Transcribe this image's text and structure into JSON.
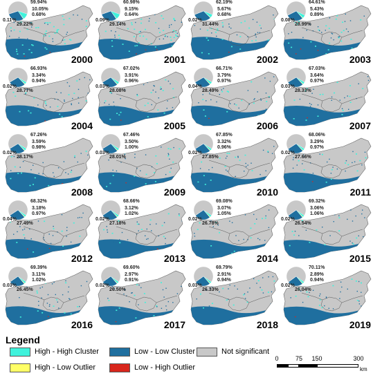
{
  "colors": {
    "high_high": "#3FF2DC",
    "low_low": "#1F6F9F",
    "not_sig": "#C8C8C8",
    "high_low": "#FFFF66",
    "low_high": "#D8261C"
  },
  "panels": [
    {
      "year": "2000",
      "pct_not_sig": "59.94%",
      "pct_hh": "10.05%",
      "pct_hl": "0.68%",
      "pct_lh": "0.11%",
      "pct_ll": "29.22%",
      "not_sig": 59.94,
      "hh": 10.05,
      "hl": 0.68,
      "lh": 0.11,
      "ll": 29.22
    },
    {
      "year": "2001",
      "pct_not_sig": "60.98%",
      "pct_hh": "9.15%",
      "pct_hl": "0.64%",
      "pct_lh": "0.09%",
      "pct_ll": "29.14%",
      "not_sig": 60.98,
      "hh": 9.15,
      "hl": 0.64,
      "lh": 0.09,
      "ll": 29.14
    },
    {
      "year": "2002",
      "pct_not_sig": "62.19%",
      "pct_hh": "5.67%",
      "pct_hl": "0.68%",
      "pct_lh": "0.02%",
      "pct_ll": "31.44%",
      "not_sig": 62.19,
      "hh": 5.67,
      "hl": 0.68,
      "lh": 0.02,
      "ll": 31.44
    },
    {
      "year": "2003",
      "pct_not_sig": "64.61%",
      "pct_hh": "5.43%",
      "pct_hl": "0.89%",
      "pct_lh": "0.08%",
      "pct_ll": "28.99%",
      "not_sig": 64.61,
      "hh": 5.43,
      "hl": 0.89,
      "lh": 0.08,
      "ll": 28.99
    },
    {
      "year": "2004",
      "pct_not_sig": "66.93%",
      "pct_hh": "3.34%",
      "pct_hl": "0.94%",
      "pct_lh": "0.02%",
      "pct_ll": "28.77%",
      "not_sig": 66.93,
      "hh": 3.34,
      "hl": 0.94,
      "lh": 0.02,
      "ll": 28.77
    },
    {
      "year": "2005",
      "pct_not_sig": "67.02%",
      "pct_hh": "3.91%",
      "pct_hl": "0.96%",
      "pct_lh": "0.03%",
      "pct_ll": "28.08%",
      "not_sig": 67.02,
      "hh": 3.91,
      "hl": 0.96,
      "lh": 0.03,
      "ll": 28.08
    },
    {
      "year": "2006",
      "pct_not_sig": "66.71%",
      "pct_hh": "3.79%",
      "pct_hl": "0.97%",
      "pct_lh": "0.04%",
      "pct_ll": "28.49%",
      "not_sig": 66.71,
      "hh": 3.79,
      "hl": 0.97,
      "lh": 0.04,
      "ll": 28.49
    },
    {
      "year": "2007",
      "pct_not_sig": "67.03%",
      "pct_hh": "3.64%",
      "pct_hl": "0.97%",
      "pct_lh": "0.03%",
      "pct_ll": "28.33%",
      "not_sig": 67.03,
      "hh": 3.64,
      "hl": 0.97,
      "lh": 0.03,
      "ll": 28.33
    },
    {
      "year": "2008",
      "pct_not_sig": "67.26%",
      "pct_hh": "3.59%",
      "pct_hl": "0.98%",
      "pct_lh": "0.02%",
      "pct_ll": "28.17%",
      "not_sig": 67.26,
      "hh": 3.59,
      "hl": 0.98,
      "lh": 0.02,
      "ll": 28.17
    },
    {
      "year": "2009",
      "pct_not_sig": "67.46%",
      "pct_hh": "3.50%",
      "pct_hl": "1.00%",
      "pct_lh": "0.03%",
      "pct_ll": "28.01%",
      "not_sig": 67.46,
      "hh": 3.5,
      "hl": 1.0,
      "lh": 0.03,
      "ll": 28.01
    },
    {
      "year": "2010",
      "pct_not_sig": "67.85%",
      "pct_hh": "3.32%",
      "pct_hl": "0.96%",
      "pct_lh": "0.02%",
      "pct_ll": "27.85%",
      "not_sig": 67.85,
      "hh": 3.32,
      "hl": 0.96,
      "lh": 0.02,
      "ll": 27.85
    },
    {
      "year": "2011",
      "pct_not_sig": "68.06%",
      "pct_hh": "3.29%",
      "pct_hl": "0.97%",
      "pct_lh": "0.02%",
      "pct_ll": "27.66%",
      "not_sig": 68.06,
      "hh": 3.29,
      "hl": 0.97,
      "lh": 0.02,
      "ll": 27.66
    },
    {
      "year": "2012",
      "pct_not_sig": "68.32%",
      "pct_hh": "3.18%",
      "pct_hl": "0.97%",
      "pct_lh": "0.04%",
      "pct_ll": "27.49%",
      "not_sig": 68.32,
      "hh": 3.18,
      "hl": 0.97,
      "lh": 0.04,
      "ll": 27.49
    },
    {
      "year": "2013",
      "pct_not_sig": "68.66%",
      "pct_hh": "3.12%",
      "pct_hl": "1.02%",
      "pct_lh": "0.02%",
      "pct_ll": "27.18%",
      "not_sig": 68.66,
      "hh": 3.12,
      "hl": 1.02,
      "lh": 0.02,
      "ll": 27.18
    },
    {
      "year": "2014",
      "pct_not_sig": "69.08%",
      "pct_hh": "3.07%",
      "pct_hl": "1.05%",
      "pct_lh": "0.02%",
      "pct_ll": "26.78%",
      "not_sig": 69.08,
      "hh": 3.07,
      "hl": 1.05,
      "lh": 0.02,
      "ll": 26.78
    },
    {
      "year": "2015",
      "pct_not_sig": "69.32%",
      "pct_hh": "3.06%",
      "pct_hl": "1.06%",
      "pct_lh": "0.02%",
      "pct_ll": "26.54%",
      "not_sig": 69.32,
      "hh": 3.06,
      "hl": 1.06,
      "lh": 0.02,
      "ll": 26.54
    },
    {
      "year": "2016",
      "pct_not_sig": "69.39%",
      "pct_hh": "3.11%",
      "pct_hl": "1.02%",
      "pct_lh": "0.03%",
      "pct_ll": "26.45%",
      "not_sig": 69.39,
      "hh": 3.11,
      "hl": 1.02,
      "lh": 0.03,
      "ll": 26.45
    },
    {
      "year": "2017",
      "pct_not_sig": "69.60%",
      "pct_hh": "2.97%",
      "pct_hl": "0.91%",
      "pct_lh": "0.02%",
      "pct_ll": "26.50%",
      "not_sig": 69.6,
      "hh": 2.97,
      "hl": 0.91,
      "lh": 0.02,
      "ll": 26.5
    },
    {
      "year": "2018",
      "pct_not_sig": "69.79%",
      "pct_hh": "2.91%",
      "pct_hl": "0.94%",
      "pct_lh": "0.03%",
      "pct_ll": "26.33%",
      "not_sig": 69.79,
      "hh": 2.91,
      "hl": 0.94,
      "lh": 0.03,
      "ll": 26.33
    },
    {
      "year": "2019",
      "pct_not_sig": "70.11%",
      "pct_hh": "2.89%",
      "pct_hl": "0.94%",
      "pct_lh": "0.02%",
      "pct_ll": "26.04%",
      "not_sig": 70.11,
      "hh": 2.89,
      "hl": 0.94,
      "lh": 0.02,
      "ll": 26.04
    }
  ],
  "legend": {
    "title": "Legend",
    "items": [
      {
        "label": "High - High Cluster",
        "color": "#3FF2DC"
      },
      {
        "label": "Low - Low Cluster",
        "color": "#1F6F9F"
      },
      {
        "label": "Not significant",
        "color": "#C8C8C8"
      },
      {
        "label": "High - Low Outlier",
        "color": "#FFFF66"
      },
      {
        "label": "Low - High Outlier",
        "color": "#D8261C"
      }
    ]
  },
  "scalebar": {
    "ticks": [
      "0",
      "75",
      "150",
      "300"
    ],
    "unit": "km"
  }
}
